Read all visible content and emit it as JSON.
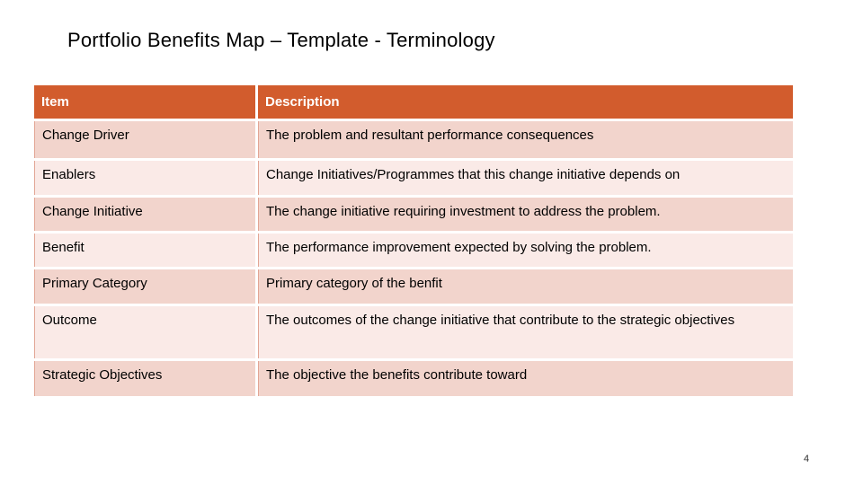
{
  "page": {
    "title": "Portfolio Benefits Map – Template - Terminology",
    "page_number": "4"
  },
  "colors": {
    "header_bg": "#d25c2d",
    "header_text": "#ffffff",
    "row_dark": "#f2d4cc",
    "row_light": "#faeae7",
    "cell_accent_border": "#e2a695",
    "title_text": "#000000"
  },
  "table": {
    "columns": [
      "Item",
      "Description"
    ],
    "rows": [
      {
        "item": "Change Driver",
        "description": "The problem and resultant performance consequences"
      },
      {
        "item": "Enablers",
        "description": "Change Initiatives/Programmes that this change initiative depends on"
      },
      {
        "item": "Change Initiative",
        "description": "The change initiative requiring investment to address the problem."
      },
      {
        "item": "Benefit",
        "description": "The performance improvement expected by solving the problem."
      },
      {
        "item": "Primary Category",
        "description": "Primary category of the benfit"
      },
      {
        "item": "Outcome",
        "description": "The outcomes of the change initiative that contribute to the strategic objectives"
      },
      {
        "item": "Strategic Objectives",
        "description": "The objective the benefits contribute toward"
      }
    ]
  }
}
